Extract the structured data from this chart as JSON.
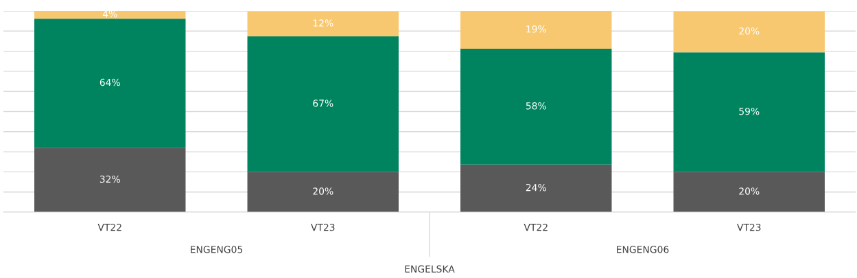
{
  "chart_data": {
    "type": "bar",
    "stacked": true,
    "categories": [
      "VT22",
      "VT23",
      "VT22",
      "VT23"
    ],
    "xlabel": "ENGELSKA",
    "annotations": [
      "ENGENG05",
      "ENGENG06"
    ],
    "series": [
      {
        "color": "#595959",
        "values": [
          32,
          20,
          23.6,
          20
        ],
        "value_labels": [
          "32%",
          "20%",
          "24%",
          "20%"
        ]
      },
      {
        "color": "#00845f",
        "values": [
          64.2,
          67.4,
          57.6,
          59.4
        ],
        "value_labels": [
          "64%",
          "67%",
          "58%",
          "59%"
        ]
      },
      {
        "color": "#f8c870",
        "values": [
          3.8,
          12.4,
          18.8,
          20.4
        ],
        "value_labels": [
          "4%",
          "12%",
          "19%",
          "20%"
        ]
      }
    ],
    "ylim": [
      0,
      100
    ],
    "yticks": [
      {
        "value": 0,
        "label": null
      },
      {
        "value": 10,
        "label": null
      },
      {
        "value": 20,
        "label": null
      },
      {
        "value": 30,
        "label": null
      },
      {
        "value": 40,
        "label": null
      },
      {
        "value": 50,
        "label": null
      },
      {
        "value": 60,
        "label": null
      },
      {
        "value": 70,
        "label": null
      },
      {
        "value": 80,
        "label": null
      },
      {
        "value": 90,
        "label": null
      },
      {
        "value": 100,
        "label": null
      }
    ],
    "grid": "y"
  }
}
